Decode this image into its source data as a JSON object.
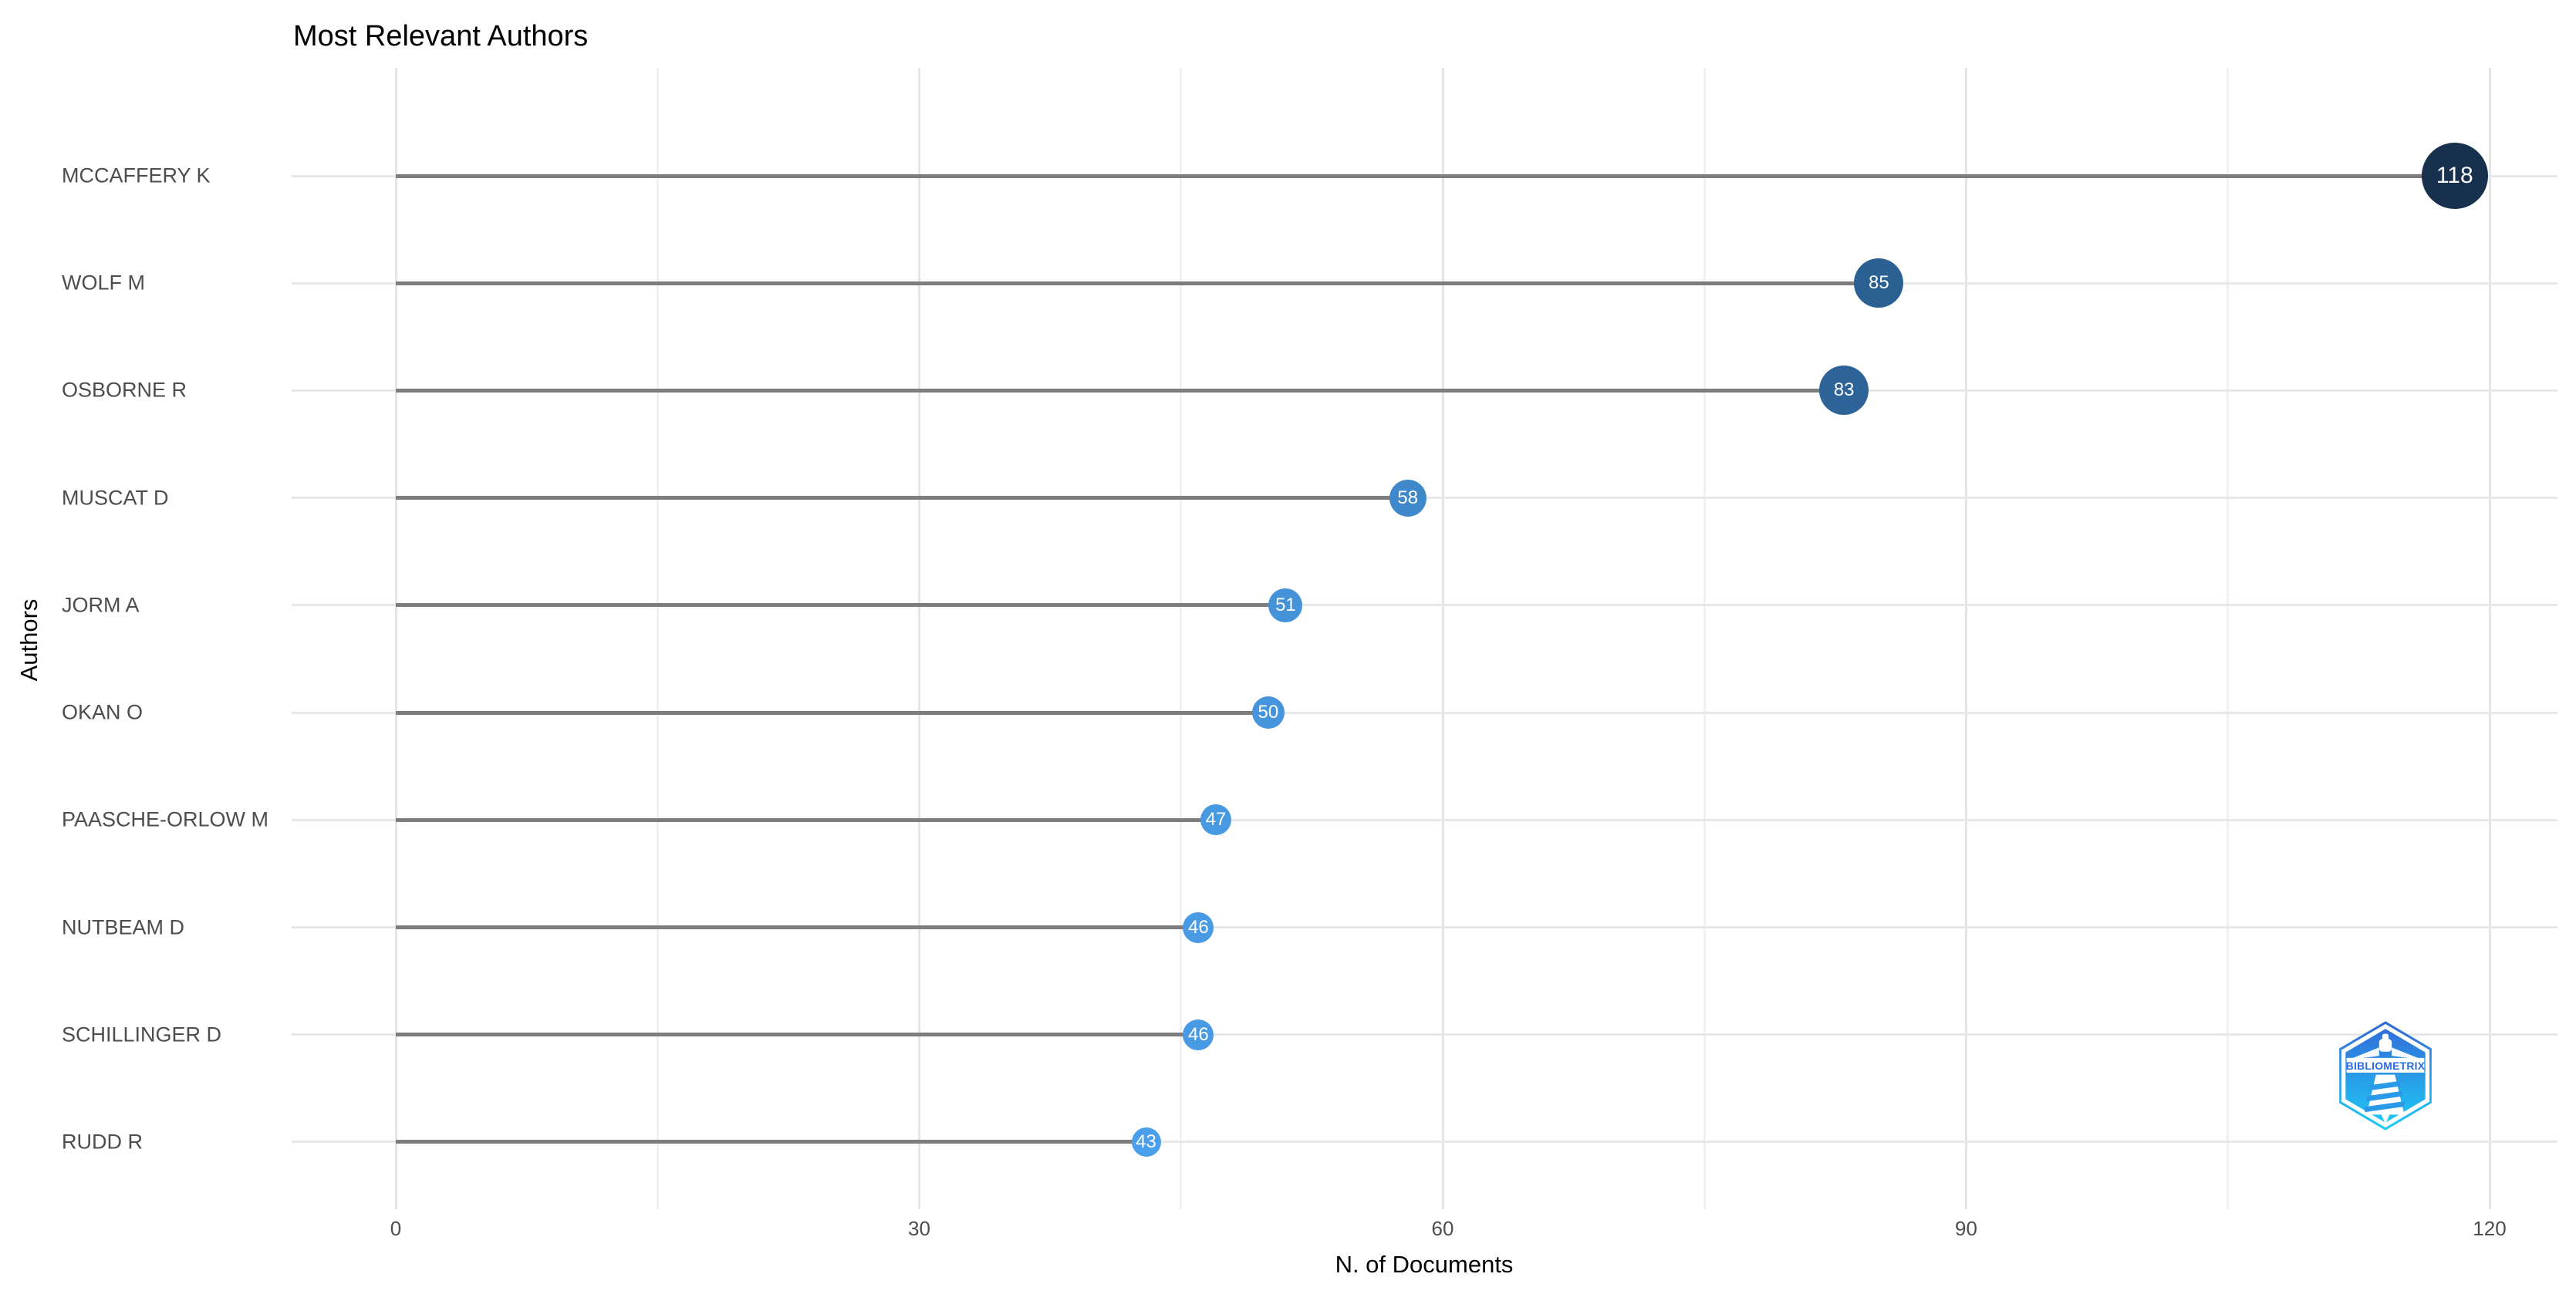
{
  "title": "Most Relevant Authors",
  "chart_data": {
    "type": "bar",
    "variant": "horizontal-lollipop",
    "title": "Most Relevant Authors",
    "xlabel": "N. of Documents",
    "ylabel": "Authors",
    "categories": [
      "MCCAFFERY K",
      "WOLF M",
      "OSBORNE R",
      "MUSCAT D",
      "JORM A",
      "OKAN O",
      "PAASCHE-ORLOW M",
      "NUTBEAM D",
      "SCHILLINGER D",
      "RUDD R"
    ],
    "values": [
      118,
      85,
      83,
      58,
      51,
      50,
      47,
      46,
      46,
      43
    ],
    "dot_colors": [
      "#16304D",
      "#2B6093",
      "#2D6397",
      "#3F89CB",
      "#4493D9",
      "#4594DC",
      "#4799E2",
      "#489AE4",
      "#489AE4",
      "#4A9FEA"
    ],
    "xlim": [
      0,
      120
    ],
    "x_major_ticks": [
      0,
      30,
      60,
      90,
      120
    ],
    "x_minor_ticks": [
      15,
      45,
      75,
      105
    ],
    "grid": true,
    "legend": false
  },
  "colors": {
    "stem": "#7d7d7d",
    "grid_major": "#e5e5e5",
    "grid_minor": "#f1f1f1",
    "row_grid": "#e8e8e8",
    "axis_text": "#4d4d4d",
    "dot_text": "#ffffff",
    "logo_top": "#3468d8",
    "logo_bottom": "#1ecdf5",
    "logo_text_color": "#2a6ae0"
  },
  "logo": {
    "name": "bibliometrix-logo",
    "text": "BIBLIOMETRIX"
  }
}
